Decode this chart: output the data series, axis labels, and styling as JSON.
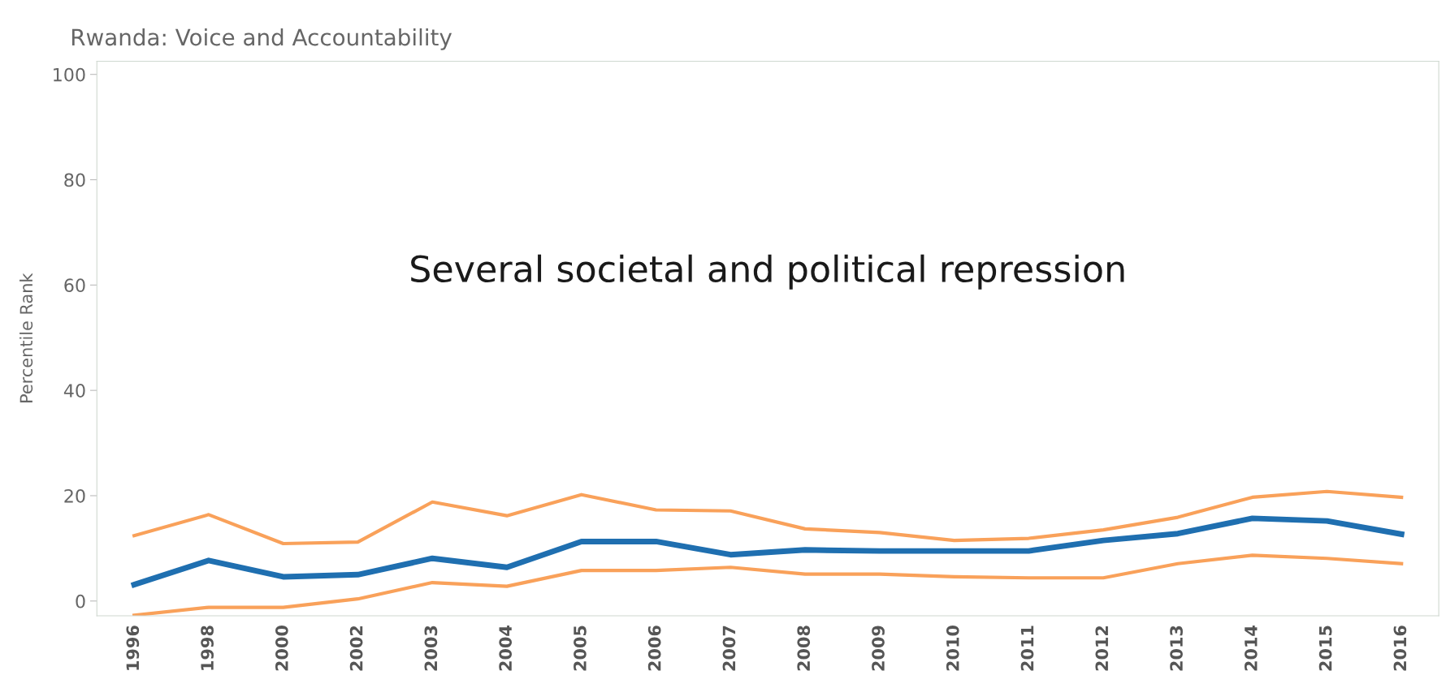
{
  "chart_data": {
    "type": "line",
    "title": "Rwanda: Voice and Accountability",
    "ylabel": "Percentile Rank",
    "categories": [
      "1996",
      "1998",
      "2000",
      "2002",
      "2003",
      "2004",
      "2005",
      "2006",
      "2007",
      "2008",
      "2009",
      "2010",
      "2011",
      "2012",
      "2013",
      "2014",
      "2015",
      "2016"
    ],
    "series": [
      {
        "color": "#f9a15a",
        "values": [
          12.4,
          16.4,
          10.9,
          11.2,
          18.8,
          16.2,
          20.2,
          17.3,
          17.1,
          13.7,
          13.0,
          11.5,
          11.9,
          13.5,
          15.9,
          19.7,
          20.8,
          19.7
        ]
      },
      {
        "color": "#1f6fb0",
        "values": [
          3.1,
          7.7,
          4.6,
          5.0,
          8.1,
          6.4,
          11.3,
          11.3,
          8.8,
          9.7,
          9.5,
          9.5,
          9.5,
          11.5,
          12.8,
          15.7,
          15.2,
          12.7
        ]
      },
      {
        "color": "#f9a15a",
        "values": [
          -2.7,
          -1.2,
          -1.2,
          0.4,
          3.5,
          2.8,
          5.8,
          5.8,
          6.4,
          5.1,
          5.1,
          4.6,
          4.4,
          4.4,
          7.1,
          8.7,
          8.1,
          7.1
        ]
      }
    ],
    "ylim": [
      -2.8,
      102.5
    ],
    "yticks": [
      0,
      20,
      40,
      60,
      80,
      100
    ],
    "annotations": [
      "Several societal and political repression"
    ],
    "grid": false,
    "legend": false,
    "marker": "none",
    "line_style": "solid"
  }
}
